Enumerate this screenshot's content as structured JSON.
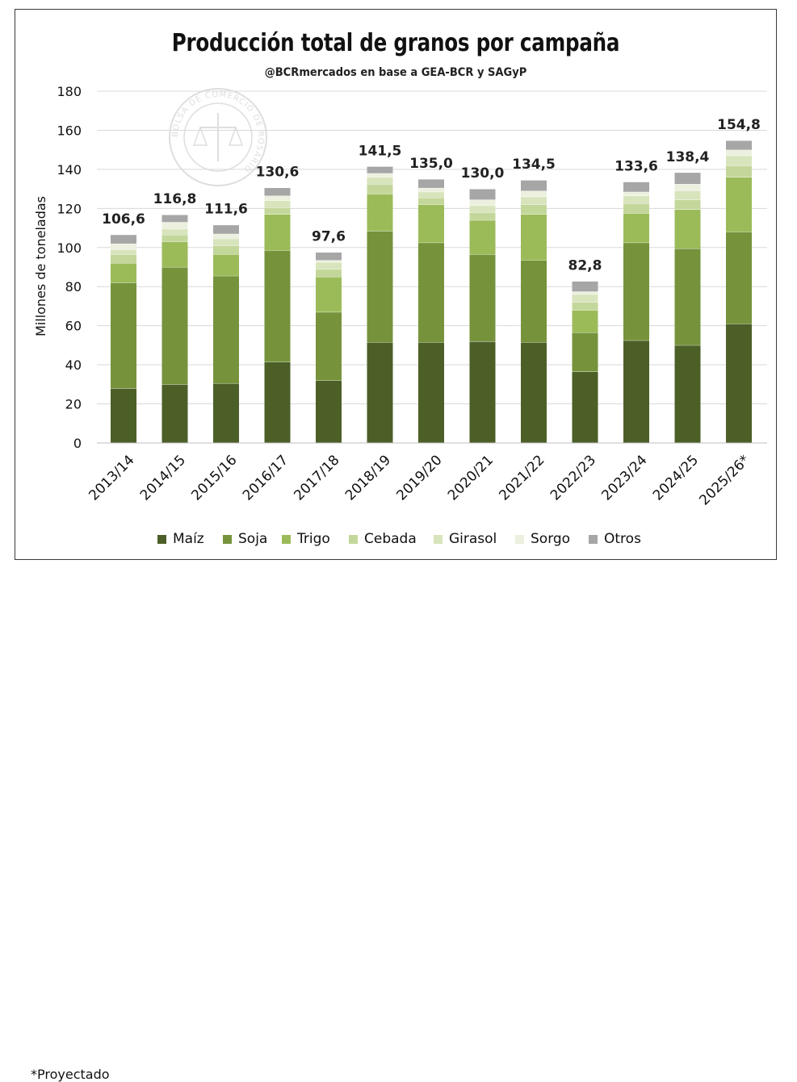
{
  "title": "Producción total de granos por campaña",
  "subtitle": "@BCRmercados en base a GEA-BCR y SAGyP",
  "watermark": "BOLSA DE COMERCIO DE ROSARIO",
  "note": "*Proyectado",
  "colors": {
    "Maíz": "#4c5f27",
    "Soja": "#76933c",
    "Trigo": "#9bbb59",
    "Cebada": "#c4d79b",
    "Girasol": "#d8e4bc",
    "Sorgo": "#ebf1de",
    "Otros": "#a6a6a6"
  },
  "chart_data": {
    "type": "bar",
    "stacked": true,
    "title": "Producción total de granos por campaña",
    "subtitle": "@BCRmercados en base a GEA-BCR y SAGyP",
    "ylabel": "Millones de toneladas",
    "xlabel": "",
    "ylim": [
      0,
      180
    ],
    "yticks": [
      0,
      20,
      40,
      60,
      80,
      100,
      120,
      140,
      160,
      180
    ],
    "grid": true,
    "legend_position": "bottom",
    "categories": [
      "2013/14",
      "2014/15",
      "2015/16",
      "2016/17",
      "2017/18",
      "2018/19",
      "2019/20",
      "2020/21",
      "2021/22",
      "2022/23",
      "2023/24",
      "2024/25",
      "2025/26*"
    ],
    "totals": [
      106.6,
      116.8,
      111.6,
      130.6,
      97.6,
      141.5,
      135.0,
      130.0,
      134.5,
      82.8,
      133.6,
      138.4,
      154.8
    ],
    "total_labels": [
      "106,6",
      "116,8",
      "111,6",
      "130,6",
      "97,6",
      "141,5",
      "135,0",
      "130,0",
      "134,5",
      "82,8",
      "133,6",
      "138,4",
      "154,8"
    ],
    "series": [
      {
        "name": "Maíz",
        "values": [
          28,
          30,
          30.5,
          41.5,
          32,
          51.5,
          51.5,
          52,
          51.5,
          36.5,
          52.5,
          50,
          61
        ]
      },
      {
        "name": "Soja",
        "values": [
          54,
          60,
          55,
          57,
          35,
          57,
          51,
          44.5,
          42,
          20,
          50,
          49.5,
          47
        ]
      },
      {
        "name": "Trigo",
        "values": [
          10,
          13,
          11,
          18.5,
          18,
          19,
          19.5,
          17.5,
          23.5,
          11.5,
          15,
          20,
          28
        ]
      },
      {
        "name": "Cebada",
        "values": [
          4.5,
          3.5,
          4.5,
          3.5,
          4,
          5,
          3.5,
          4,
          5,
          4,
          5,
          5,
          6
        ]
      },
      {
        "name": "Girasol",
        "values": [
          2.5,
          3,
          3.5,
          3.5,
          3.5,
          3.5,
          3,
          3.5,
          4,
          4,
          4,
          4.5,
          5
        ]
      },
      {
        "name": "Sorgo",
        "values": [
          3,
          3.5,
          2.5,
          2.5,
          1,
          2,
          2,
          3,
          3,
          1.5,
          2,
          3.5,
          3
        ]
      },
      {
        "name": "Otros",
        "values": [
          4.6,
          3.8,
          4.6,
          4.1,
          4.1,
          3.5,
          4.5,
          5.5,
          5.5,
          5.3,
          5.1,
          5.9,
          4.8
        ]
      }
    ]
  }
}
